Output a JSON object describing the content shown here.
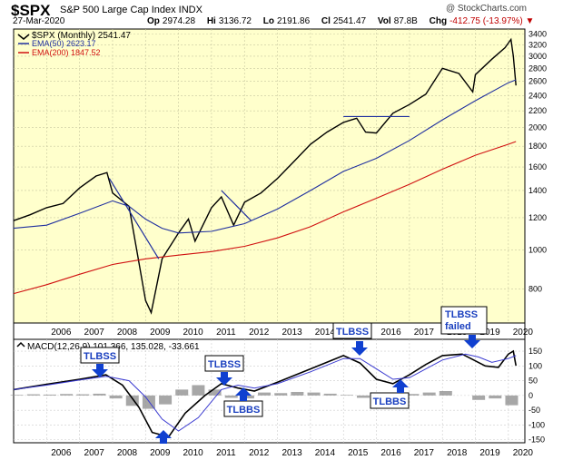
{
  "header": {
    "symbol": "$SPX",
    "name": "S&P 500 Large Cap Index  INDX",
    "watermark": "@ StockCharts.com",
    "date": "27-Mar-2020",
    "quote": {
      "open_label": "Op",
      "open": "2974.28",
      "high_label": "Hi",
      "high": "3136.72",
      "low_label": "Lo",
      "low": "2191.86",
      "close_label": "Cl",
      "close": "2541.47",
      "vol_label": "Vol",
      "vol": "87.8B",
      "chg_label": "Chg",
      "chg": "-412.75 (-13.97%)",
      "chg_arrow": "▼"
    },
    "negative_color": "#c00000"
  },
  "legend": {
    "price": "$SPX (Monthly) 2541.47",
    "ema50": "EMA(50) 2623.17",
    "ema200": "EMA(200) 1847.52",
    "macd": "MACD(12,26,9) 101.366, 135.028, -33.661"
  },
  "annotations": {
    "tlbss_2008": "TLBSS",
    "tlbss_2011": "TLBSS",
    "tlbbs_2012": "TLBBS",
    "tlbss_2015": "TLBSS",
    "tlbbs_2016": "TLBBS",
    "tlbss_2018": "TLBSS\nfailed"
  },
  "chart_data": [
    {
      "type": "line",
      "title": "$SPX (Monthly)",
      "log_scale": true,
      "grid": true,
      "ylim": [
        660,
        3500
      ],
      "xlim": [
        2005.0,
        2020.5
      ],
      "yticks": [
        800,
        1000,
        1200,
        1400,
        1600,
        1800,
        2000,
        2200,
        2400,
        2600,
        2800,
        3000,
        3200,
        3400
      ],
      "xticks": [
        2006,
        2007,
        2008,
        2009,
        2010,
        2011,
        2012,
        2013,
        2014,
        2015,
        2016,
        2017,
        2018,
        2019,
        2020
      ],
      "xtick_labels": [
        "2006",
        "2007",
        "2008",
        "2009",
        "2010",
        "2011",
        "2012",
        "2013",
        "2014",
        "2015",
        "2016",
        "2017",
        "2018",
        "2019",
        "2020"
      ],
      "colors": {
        "background": "#ffffcc",
        "price": "#000000",
        "ema50": "#1f2f9f",
        "ema200": "#d01010",
        "trendline": "#1f2f9f"
      },
      "series": [
        {
          "name": "$SPX (Monthly)",
          "x": [
            2005.0,
            2005.5,
            2006.0,
            2006.5,
            2007.0,
            2007.5,
            2007.83,
            2008.0,
            2008.5,
            2008.83,
            2009.0,
            2009.17,
            2009.5,
            2010.0,
            2010.3,
            2010.5,
            2011.0,
            2011.3,
            2011.67,
            2012.0,
            2012.5,
            2013.0,
            2013.5,
            2014.0,
            2014.5,
            2015.0,
            2015.4,
            2015.67,
            2016.0,
            2016.5,
            2017.0,
            2017.5,
            2018.0,
            2018.5,
            2018.92,
            2019.0,
            2019.5,
            2019.9,
            2020.08,
            2020.15,
            2020.23
          ],
          "values": [
            1180,
            1220,
            1270,
            1300,
            1420,
            1520,
            1550,
            1380,
            1280,
            900,
            750,
            700,
            950,
            1100,
            1190,
            1050,
            1270,
            1350,
            1150,
            1310,
            1380,
            1500,
            1650,
            1820,
            1950,
            2060,
            2110,
            1950,
            1940,
            2170,
            2280,
            2420,
            2800,
            2720,
            2450,
            2700,
            2950,
            3150,
            3300,
            3000,
            2541
          ]
        },
        {
          "name": "EMA(50)",
          "x": [
            2005.0,
            2006.0,
            2007.0,
            2008.0,
            2008.5,
            2009.0,
            2009.5,
            2010.0,
            2011.0,
            2012.0,
            2013.0,
            2014.0,
            2015.0,
            2016.0,
            2017.0,
            2018.0,
            2019.0,
            2020.0,
            2020.23
          ],
          "values": [
            1130,
            1150,
            1230,
            1320,
            1280,
            1190,
            1130,
            1100,
            1110,
            1160,
            1260,
            1400,
            1560,
            1680,
            1860,
            2090,
            2330,
            2580,
            2623
          ]
        },
        {
          "name": "EMA(200)",
          "x": [
            2005.0,
            2006.0,
            2007.0,
            2008.0,
            2009.0,
            2010.0,
            2011.0,
            2012.0,
            2013.0,
            2014.0,
            2015.0,
            2016.0,
            2017.0,
            2018.0,
            2019.0,
            2020.0,
            2020.23
          ],
          "values": [
            780,
            820,
            870,
            920,
            950,
            970,
            990,
            1020,
            1070,
            1140,
            1240,
            1340,
            1450,
            1580,
            1710,
            1820,
            1848
          ]
        }
      ]
    },
    {
      "type": "line",
      "title": "MACD(12,26,9)",
      "grid": true,
      "ylim": [
        -160,
        190
      ],
      "xlim": [
        2005.0,
        2020.5
      ],
      "yticks": [
        150,
        100,
        50,
        0,
        -50,
        -100,
        -150
      ],
      "xticks": [
        2006,
        2007,
        2008,
        2009,
        2010,
        2011,
        2012,
        2013,
        2014,
        2015,
        2016,
        2017,
        2018,
        2019,
        2020
      ],
      "xtick_labels": [
        "2006",
        "2007",
        "2008",
        "2009",
        "2010",
        "2011",
        "2012",
        "2013",
        "2014",
        "2015",
        "2016",
        "2017",
        "2018",
        "2019",
        "2020"
      ],
      "colors": {
        "macd": "#000000",
        "signal": "#3a3ad0",
        "histogram": "#8a8a8a",
        "arrow": "#1040d0"
      },
      "series": [
        {
          "name": "MACD",
          "x": [
            2005.0,
            2006.0,
            2007.0,
            2007.8,
            2008.3,
            2008.8,
            2009.2,
            2009.7,
            2010.2,
            2010.8,
            2011.3,
            2011.8,
            2012.3,
            2013.0,
            2014.0,
            2015.0,
            2015.5,
            2016.0,
            2016.5,
            2017.0,
            2017.5,
            2018.0,
            2018.6,
            2018.95,
            2019.3,
            2019.7,
            2020.0,
            2020.15,
            2020.23
          ],
          "values": [
            20,
            38,
            55,
            70,
            35,
            -40,
            -125,
            -140,
            -60,
            0,
            40,
            25,
            15,
            45,
            90,
            135,
            110,
            55,
            40,
            70,
            105,
            135,
            140,
            120,
            100,
            95,
            140,
            150,
            101
          ]
        },
        {
          "name": "Signal",
          "x": [
            2005.0,
            2006.0,
            2007.0,
            2007.8,
            2008.5,
            2009.0,
            2009.5,
            2010.0,
            2010.6,
            2011.3,
            2011.8,
            2012.3,
            2013.0,
            2014.0,
            2015.0,
            2015.5,
            2016.0,
            2016.5,
            2017.0,
            2017.5,
            2018.0,
            2018.7,
            2019.1,
            2019.5,
            2020.0,
            2020.23
          ],
          "values": [
            20,
            35,
            52,
            65,
            50,
            -5,
            -80,
            -120,
            -75,
            20,
            35,
            25,
            40,
            80,
            125,
            125,
            90,
            55,
            60,
            90,
            120,
            140,
            130,
            112,
            125,
            135
          ]
        },
        {
          "name": "Histogram",
          "x": [
            2005.1,
            2005.6,
            2006.1,
            2006.6,
            2007.1,
            2007.6,
            2008.1,
            2008.6,
            2009.1,
            2009.6,
            2010.1,
            2010.6,
            2011.1,
            2011.6,
            2012.1,
            2012.6,
            2013.1,
            2013.6,
            2014.1,
            2014.6,
            2015.1,
            2015.6,
            2016.1,
            2016.6,
            2017.1,
            2017.6,
            2018.1,
            2018.6,
            2019.1,
            2019.6,
            2020.1
          ],
          "values": [
            2,
            4,
            3,
            5,
            4,
            6,
            -10,
            -35,
            -45,
            -30,
            20,
            35,
            20,
            -8,
            -10,
            10,
            8,
            12,
            10,
            6,
            2,
            -8,
            -15,
            -10,
            5,
            10,
            15,
            0,
            -15,
            -10,
            -33
          ]
        }
      ]
    }
  ]
}
